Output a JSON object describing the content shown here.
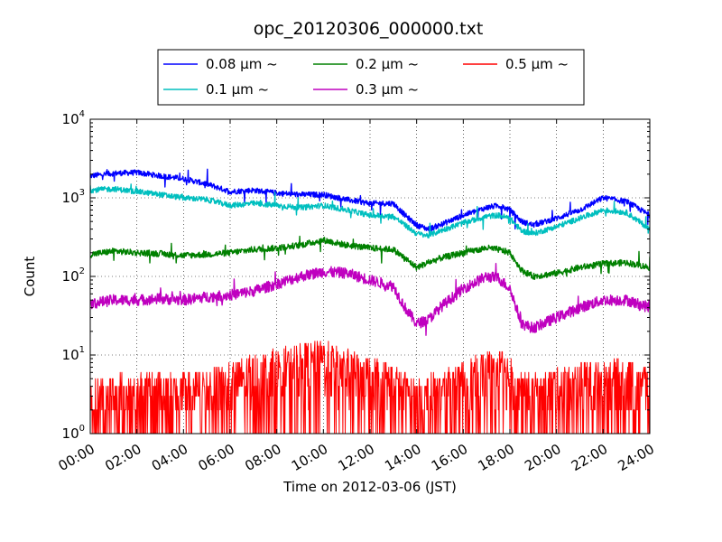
{
  "chart_data": {
    "type": "line",
    "title": "opc_20120306_000000.txt",
    "xlabel": "Time on 2012-03-06 (JST)",
    "ylabel": "Count",
    "yscale": "log",
    "ylim": [
      1,
      10000
    ],
    "xlim": [
      "00:00",
      "24:00"
    ],
    "grid": true,
    "legend_position": "top-center, above plot",
    "x_ticks": [
      "00:00",
      "02:00",
      "04:00",
      "06:00",
      "08:00",
      "10:00",
      "12:00",
      "14:00",
      "16:00",
      "18:00",
      "20:00",
      "22:00",
      "24:00"
    ],
    "y_ticks": [
      {
        "base": "10",
        "exp": "0"
      },
      {
        "base": "10",
        "exp": "1"
      },
      {
        "base": "10",
        "exp": "2"
      },
      {
        "base": "10",
        "exp": "3"
      },
      {
        "base": "10",
        "exp": "4"
      }
    ],
    "x_hours": [
      0,
      1,
      2,
      3,
      4,
      5,
      6,
      7,
      8,
      9,
      10,
      11,
      12,
      13,
      13.5,
      14,
      14.5,
      15,
      16,
      17,
      17.5,
      18,
      18.5,
      19,
      20,
      21,
      22,
      23,
      24
    ],
    "series": [
      {
        "name": "0.08 μm ~",
        "color": "#0000ff",
        "noise": 0.035,
        "values": [
          1900,
          2050,
          2100,
          1900,
          1750,
          1500,
          1200,
          1250,
          1150,
          1100,
          1100,
          950,
          850,
          850,
          600,
          450,
          400,
          450,
          600,
          750,
          800,
          700,
          500,
          450,
          550,
          700,
          1000,
          900,
          600
        ]
      },
      {
        "name": "0.1 μm ~",
        "color": "#00bfbf",
        "noise": 0.035,
        "values": [
          1250,
          1300,
          1200,
          1100,
          1000,
          950,
          800,
          850,
          800,
          750,
          800,
          700,
          600,
          580,
          450,
          350,
          330,
          380,
          480,
          580,
          600,
          550,
          380,
          350,
          430,
          550,
          700,
          650,
          400
        ]
      },
      {
        "name": "0.2 μm ~",
        "color": "#008000",
        "noise": 0.04,
        "values": [
          190,
          210,
          200,
          195,
          185,
          190,
          200,
          220,
          230,
          250,
          290,
          250,
          230,
          220,
          170,
          130,
          150,
          170,
          200,
          230,
          220,
          200,
          120,
          100,
          110,
          130,
          145,
          150,
          130
        ]
      },
      {
        "name": "0.3 μm ~",
        "color": "#bf00bf",
        "noise": 0.07,
        "values": [
          45,
          50,
          50,
          52,
          50,
          55,
          58,
          65,
          80,
          100,
          115,
          110,
          90,
          75,
          40,
          25,
          28,
          40,
          70,
          100,
          95,
          70,
          25,
          22,
          30,
          40,
          50,
          50,
          40
        ]
      },
      {
        "name": "0.5 μm ~",
        "color": "#ff0000",
        "noise": 0.0,
        "values": [
          2.5,
          3,
          3,
          3,
          3,
          3.5,
          4,
          5,
          6,
          7,
          8,
          6,
          5,
          4,
          3,
          2.5,
          3,
          3,
          4,
          6,
          6,
          5,
          3,
          3,
          3.5,
          4,
          4.5,
          4.5,
          4
        ]
      }
    ]
  }
}
